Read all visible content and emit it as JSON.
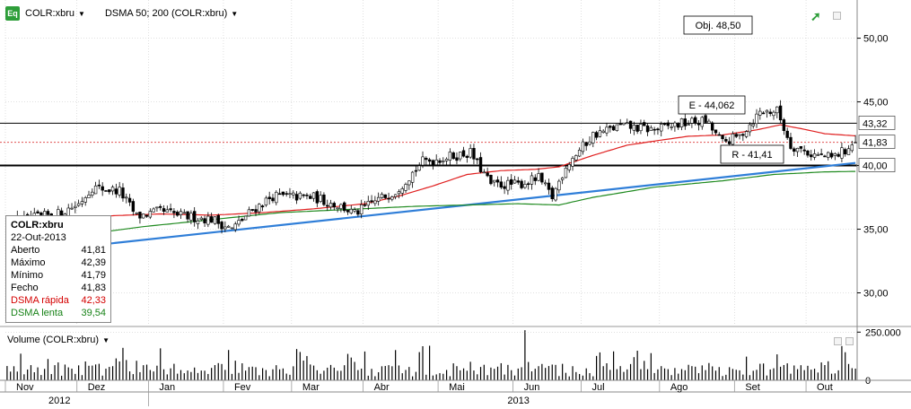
{
  "header": {
    "icon_label": "Eq",
    "symbol": "COLR:xbru",
    "indicator": "DSMA 50; 200 (COLR:xbru)"
  },
  "annotations": {
    "objective": "Obj. 48,50",
    "resistance_box": "E - 44,062",
    "support_box": "R - 41,41"
  },
  "price_tags": {
    "upper": "43,32",
    "current": "41,83",
    "lower": "40,00"
  },
  "info_box": {
    "title": "COLR:xbru",
    "date": "22-Out-2013",
    "rows": [
      {
        "label": "Aberto",
        "value": "41,81",
        "color": "#000000"
      },
      {
        "label": "Máximo",
        "value": "42,39",
        "color": "#000000"
      },
      {
        "label": "Mínimo",
        "value": "41,79",
        "color": "#000000"
      },
      {
        "label": "Fecho",
        "value": "41,83",
        "color": "#000000"
      },
      {
        "label": "DSMA rápida",
        "value": "42,33",
        "color": "#d40000"
      },
      {
        "label": "DSMA lenta",
        "value": "39,54",
        "color": "#178217"
      }
    ]
  },
  "volume_panel": {
    "title": "Volume (COLR:xbru)",
    "tick_labels": [
      "250.000",
      "0"
    ]
  },
  "colors": {
    "fast_ma": "#e02020",
    "slow_ma": "#1f8a1f",
    "trendline": "#2f7ed8",
    "candle": "#000000",
    "grid": "#c0c0c0"
  },
  "chart_data": {
    "type": "candlestick",
    "price_axis": {
      "min": 27.5,
      "max": 53.0,
      "ticks": [
        30,
        35,
        40,
        45,
        50
      ],
      "tick_labels": [
        "30,00",
        "35,00",
        "40,00",
        "45,00",
        "50,00"
      ]
    },
    "x_months": [
      {
        "label": "Nov",
        "start": 0
      },
      {
        "label": "Dez",
        "start": 21
      },
      {
        "label": "Jan",
        "start": 42
      },
      {
        "label": "Fev",
        "start": 64
      },
      {
        "label": "Mar",
        "start": 84
      },
      {
        "label": "Abr",
        "start": 105
      },
      {
        "label": "Mai",
        "start": 127
      },
      {
        "label": "Jun",
        "start": 149
      },
      {
        "label": "Jul",
        "start": 169
      },
      {
        "label": "Ago",
        "start": 192
      },
      {
        "label": "Set",
        "start": 214
      },
      {
        "label": "Out",
        "start": 235
      }
    ],
    "x_years": [
      {
        "label": "2012",
        "start": 0
      },
      {
        "label": "2013",
        "start": 42
      }
    ],
    "bar_count": 250,
    "horizontal_levels": [
      {
        "value": 43.32,
        "style": "solid"
      },
      {
        "value": 40.0,
        "style": "solid-bold"
      },
      {
        "value": 41.83,
        "style": "dotted-red"
      }
    ],
    "trendline": {
      "start": {
        "bar": 0,
        "price": 33.0
      },
      "end": {
        "bar": 249,
        "price": 40.2
      }
    },
    "close_keypoints": [
      [
        0,
        35.5
      ],
      [
        15,
        36.2
      ],
      [
        21,
        37.0
      ],
      [
        25,
        38.3
      ],
      [
        33,
        38.0
      ],
      [
        38,
        36.0
      ],
      [
        45,
        36.4
      ],
      [
        52,
        36.0
      ],
      [
        60,
        35.8
      ],
      [
        66,
        35.0
      ],
      [
        72,
        36.5
      ],
      [
        78,
        37.6
      ],
      [
        90,
        37.5
      ],
      [
        98,
        36.8
      ],
      [
        102,
        36.2
      ],
      [
        108,
        37.2
      ],
      [
        114,
        38.0
      ],
      [
        122,
        40.3
      ],
      [
        130,
        40.7
      ],
      [
        136,
        41.0
      ],
      [
        142,
        38.5
      ],
      [
        150,
        38.5
      ],
      [
        156,
        39.0
      ],
      [
        160,
        37.5
      ],
      [
        164,
        40.0
      ],
      [
        172,
        42.4
      ],
      [
        180,
        43.1
      ],
      [
        190,
        42.8
      ],
      [
        198,
        43.3
      ],
      [
        205,
        43.5
      ],
      [
        210,
        41.8
      ],
      [
        215,
        42.3
      ],
      [
        221,
        44.2
      ],
      [
        226,
        44.3
      ],
      [
        230,
        41.6
      ],
      [
        236,
        40.9
      ],
      [
        242,
        40.6
      ],
      [
        246,
        41.2
      ],
      [
        249,
        41.83
      ]
    ],
    "fast_ma_keypoints": [
      [
        0,
        35.0
      ],
      [
        25,
        36.0
      ],
      [
        45,
        36.2
      ],
      [
        60,
        36.1
      ],
      [
        75,
        36.3
      ],
      [
        90,
        36.6
      ],
      [
        105,
        37.0
      ],
      [
        115,
        37.6
      ],
      [
        125,
        38.4
      ],
      [
        135,
        39.3
      ],
      [
        145,
        39.6
      ],
      [
        155,
        39.7
      ],
      [
        162,
        39.9
      ],
      [
        172,
        40.8
      ],
      [
        182,
        41.6
      ],
      [
        192,
        42.0
      ],
      [
        200,
        42.3
      ],
      [
        210,
        42.4
      ],
      [
        220,
        42.8
      ],
      [
        227,
        43.2
      ],
      [
        233,
        42.9
      ],
      [
        240,
        42.5
      ],
      [
        249,
        42.33
      ]
    ],
    "slow_ma_keypoints": [
      [
        0,
        33.8
      ],
      [
        40,
        35.2
      ],
      [
        80,
        36.3
      ],
      [
        120,
        36.8
      ],
      [
        150,
        37.0
      ],
      [
        162,
        36.9
      ],
      [
        172,
        37.5
      ],
      [
        190,
        38.3
      ],
      [
        210,
        38.8
      ],
      [
        225,
        39.3
      ],
      [
        240,
        39.5
      ],
      [
        249,
        39.54
      ]
    ],
    "volume_max": 270000,
    "last_bar": {
      "date": "22-Out-2013",
      "open": 41.81,
      "high": 42.39,
      "low": 41.79,
      "close": 41.83
    }
  }
}
